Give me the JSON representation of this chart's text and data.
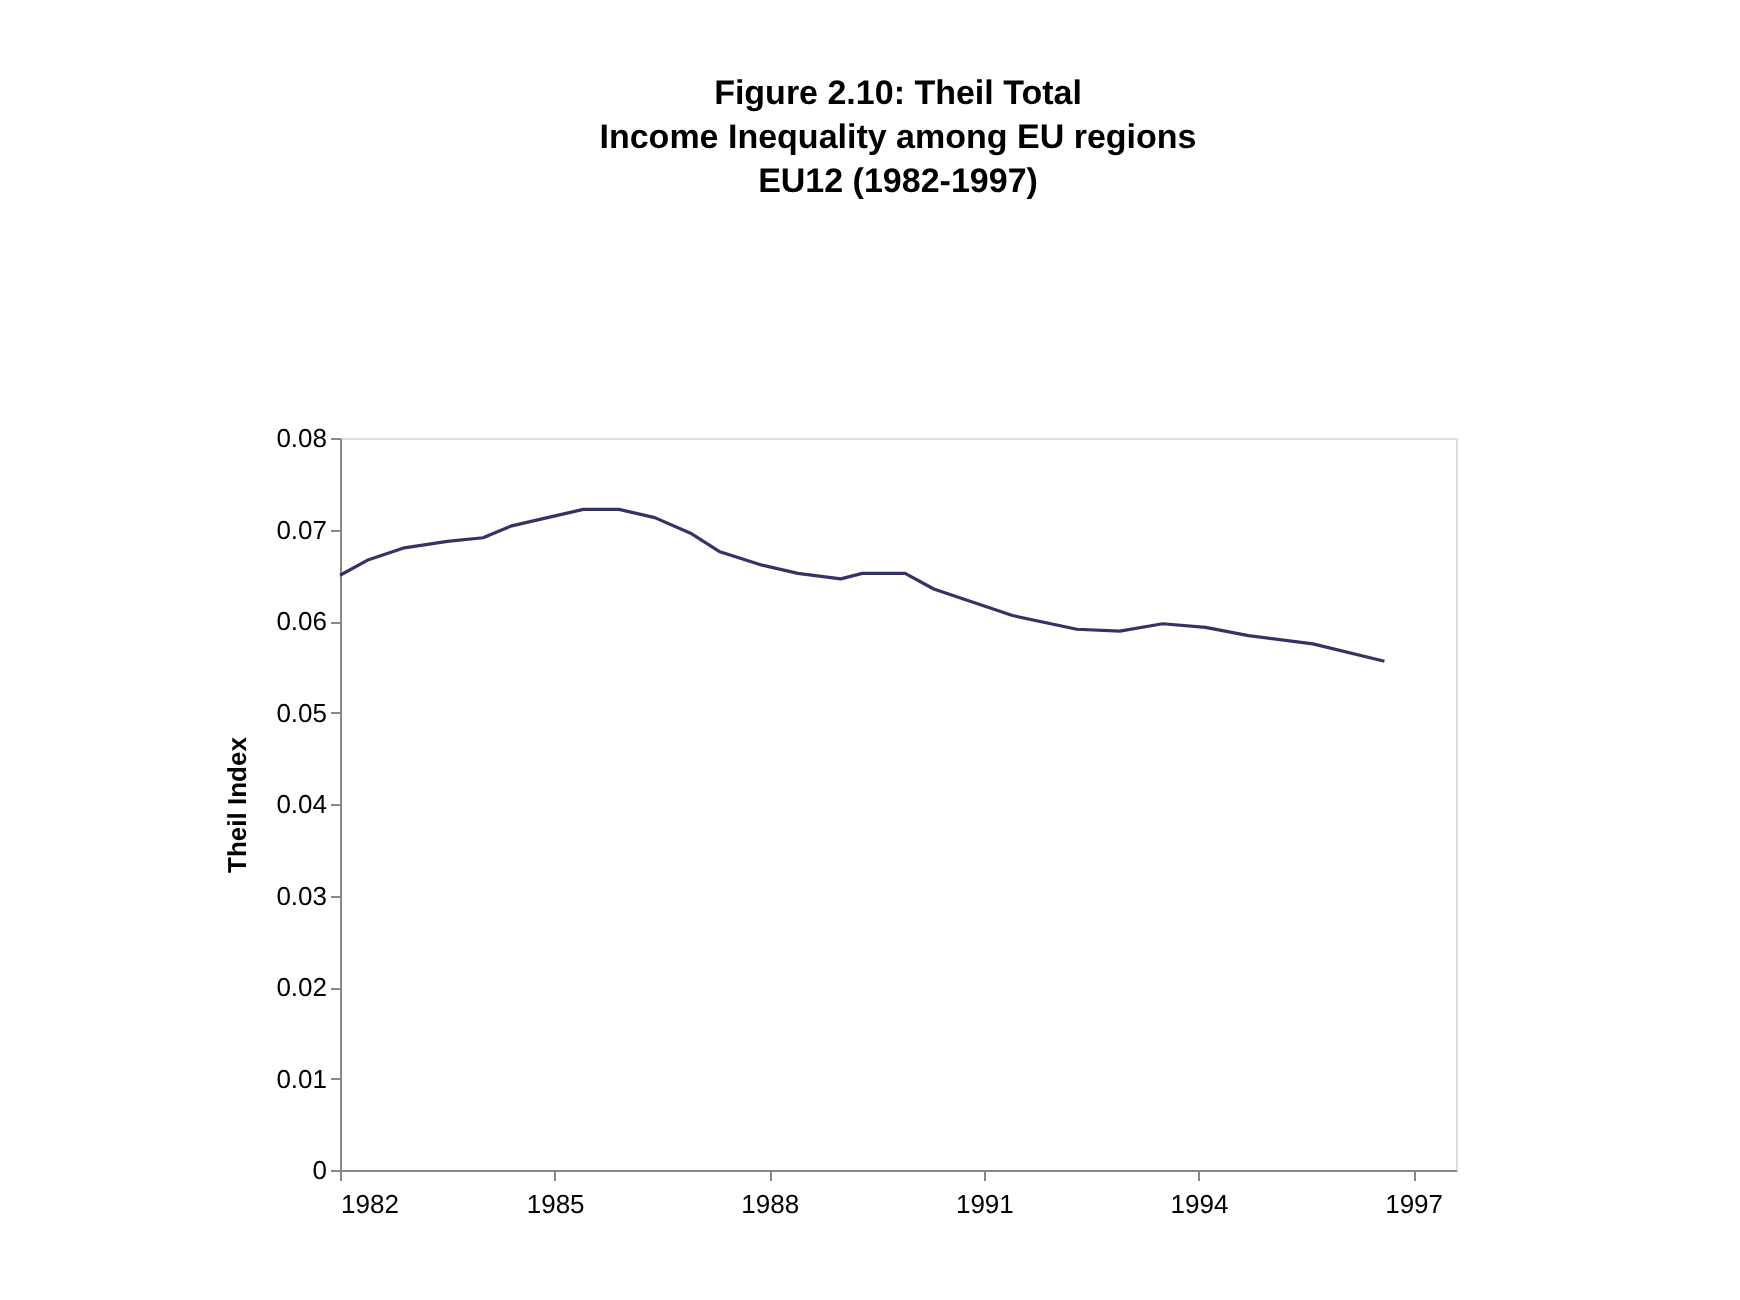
{
  "chart_data": {
    "type": "line",
    "title": [
      "Figure 2.10: Theil Total",
      "Income Inequality among EU regions",
      "EU12 (1982-1997)"
    ],
    "ylabel": "Theil Index",
    "x": [
      1982.0,
      1982.4,
      1982.9,
      1983.5,
      1984.0,
      1984.4,
      1984.9,
      1985.4,
      1985.9,
      1986.4,
      1986.9,
      1987.3,
      1987.9,
      1988.4,
      1989.0,
      1989.3,
      1989.9,
      1990.3,
      1991.4,
      1992.3,
      1992.9,
      1993.5,
      1994.1,
      1994.7,
      1995.6,
      1996.6
    ],
    "series": [
      {
        "color": "#333366",
        "values": [
          0.065,
          0.0667,
          0.068,
          0.0687,
          0.0691,
          0.0704,
          0.0713,
          0.0722,
          0.0722,
          0.0713,
          0.0696,
          0.0676,
          0.0661,
          0.0652,
          0.0646,
          0.0652,
          0.0652,
          0.0635,
          0.0606,
          0.0591,
          0.0589,
          0.0597,
          0.0593,
          0.0584,
          0.0575,
          0.0556
        ]
      }
    ],
    "xlim": [
      1982,
      1997.6
    ],
    "xticks": [
      1982,
      1985,
      1988,
      1991,
      1994,
      1997
    ],
    "ylim": [
      0,
      0.08
    ],
    "yticks": [
      0,
      0.01,
      0.02,
      0.03,
      0.04,
      0.05,
      0.06,
      0.07,
      0.08
    ],
    "grid": false,
    "legend": false,
    "marker": "none",
    "line_style": "solid"
  }
}
